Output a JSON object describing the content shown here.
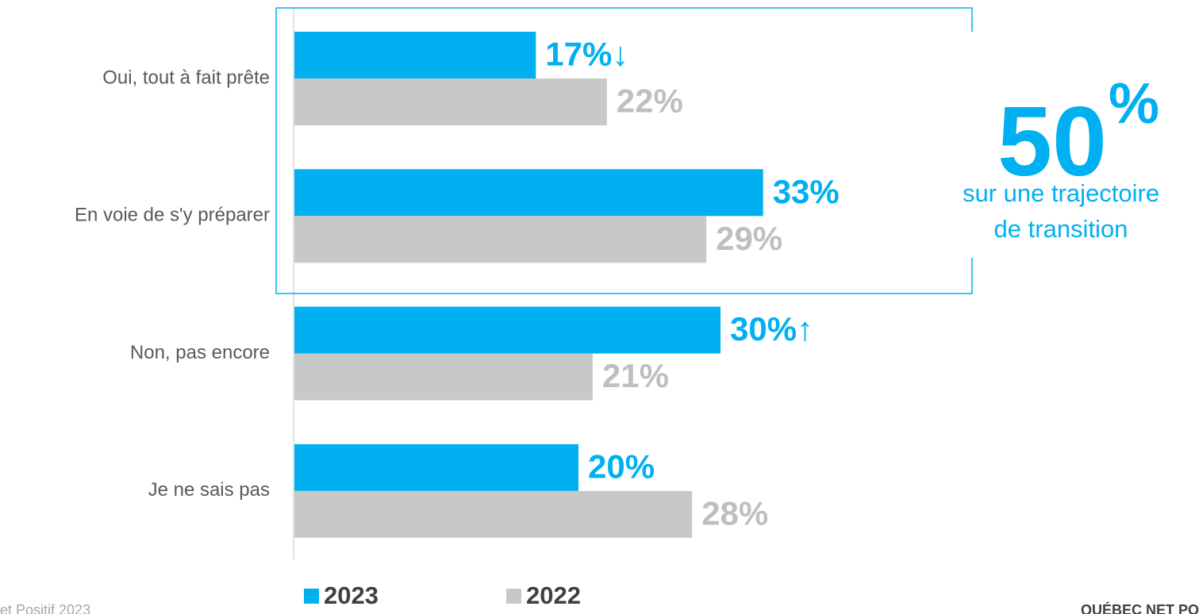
{
  "chart_data": {
    "type": "bar",
    "orientation": "horizontal",
    "categories": [
      "Oui, tout à fait prête",
      "En voie de s'y préparer",
      "Non, pas encore",
      "Je ne sais pas"
    ],
    "series": [
      {
        "name": "2023",
        "color": "#00b0f0",
        "values": [
          17,
          33,
          30,
          20
        ],
        "value_labels": [
          "17%↓",
          "33%",
          "30%↑",
          "20%"
        ]
      },
      {
        "name": "2022",
        "color": "#c8c8c8",
        "values": [
          22,
          29,
          21,
          28
        ],
        "value_labels": [
          "22%",
          "29%",
          "21%",
          "28%"
        ]
      }
    ],
    "highlight": {
      "value": "50",
      "unit": "%",
      "caption": [
        "sur une trajectoire",
        "de transition"
      ],
      "color": "#00b0f0"
    },
    "footer_left": "et Positif 2023",
    "footer_right": "QUÉBEC NET PO"
  }
}
